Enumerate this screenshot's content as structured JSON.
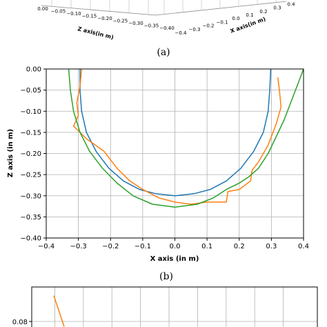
{
  "top_panel": {
    "caption": "(a)",
    "z_axis_label": "Z axis(in m)",
    "x_axis_label": "X axis(in m)",
    "z_ticks": [
      "0.00",
      "−0.05",
      "−0.10",
      "−0.15",
      "−0.20",
      "−0.25",
      "−0.30",
      "−0.35",
      "−0.40"
    ],
    "x_ticks": [
      "−0.4",
      "−0.3",
      "−0.2",
      "−0.1",
      "0.0",
      "0.1",
      "0.2",
      "0.3",
      "0.4"
    ]
  },
  "middle_panel": {
    "caption": "(b)"
  },
  "bottom_panel": {
    "y_tick": "0.08"
  },
  "chart_data": [
    {
      "type": "line",
      "xlabel": "X axis (in m)",
      "ylabel": "Z axis (in m)",
      "xlim": [
        -0.4,
        0.4
      ],
      "ylim": [
        -0.4,
        0.0
      ],
      "x_ticks": [
        "−0.4",
        "−0.3",
        "−0.2",
        "−0.1",
        "0.0",
        "0.1",
        "0.2",
        "0.3",
        "0.4"
      ],
      "y_ticks": [
        "0.00",
        "−0.05",
        "−0.10",
        "−0.15",
        "−0.20",
        "−0.25",
        "−0.30",
        "−0.35",
        "−0.40"
      ],
      "grid": true,
      "colors": [
        "#1f77b4",
        "#ff7f0e",
        "#2ca02c"
      ],
      "series": [
        {
          "points": [
            [
              -0.295,
              0.0
            ],
            [
              -0.295,
              -0.05
            ],
            [
              -0.29,
              -0.1
            ],
            [
              -0.275,
              -0.15
            ],
            [
              -0.245,
              -0.195
            ],
            [
              -0.205,
              -0.235
            ],
            [
              -0.16,
              -0.265
            ],
            [
              -0.11,
              -0.285
            ],
            [
              -0.06,
              -0.295
            ],
            [
              0.0,
              -0.3
            ],
            [
              0.06,
              -0.295
            ],
            [
              0.11,
              -0.285
            ],
            [
              0.16,
              -0.265
            ],
            [
              0.205,
              -0.235
            ],
            [
              0.245,
              -0.195
            ],
            [
              0.275,
              -0.15
            ],
            [
              0.29,
              -0.1
            ],
            [
              0.295,
              -0.05
            ],
            [
              0.298,
              0.0
            ]
          ]
        },
        {
          "points": [
            [
              -0.29,
              0.0
            ],
            [
              -0.295,
              -0.04
            ],
            [
              -0.305,
              -0.08
            ],
            [
              -0.3,
              -0.11
            ],
            [
              -0.315,
              -0.135
            ],
            [
              -0.275,
              -0.165
            ],
            [
              -0.22,
              -0.195
            ],
            [
              -0.18,
              -0.235
            ],
            [
              -0.14,
              -0.265
            ],
            [
              -0.1,
              -0.285
            ],
            [
              -0.05,
              -0.305
            ],
            [
              0.0,
              -0.315
            ],
            [
              0.05,
              -0.32
            ],
            [
              0.1,
              -0.315
            ],
            [
              0.16,
              -0.315
            ],
            [
              0.165,
              -0.29
            ],
            [
              0.2,
              -0.285
            ],
            [
              0.235,
              -0.265
            ],
            [
              0.24,
              -0.24
            ],
            [
              0.26,
              -0.22
            ],
            [
              0.29,
              -0.18
            ],
            [
              0.315,
              -0.13
            ],
            [
              0.33,
              -0.09
            ],
            [
              0.325,
              -0.05
            ],
            [
              0.32,
              -0.02
            ]
          ]
        },
        {
          "points": [
            [
              -0.33,
              0.0
            ],
            [
              -0.325,
              -0.05
            ],
            [
              -0.315,
              -0.1
            ],
            [
              -0.295,
              -0.15
            ],
            [
              -0.265,
              -0.195
            ],
            [
              -0.225,
              -0.235
            ],
            [
              -0.18,
              -0.27
            ],
            [
              -0.13,
              -0.3
            ],
            [
              -0.07,
              -0.32
            ],
            [
              0.0,
              -0.327
            ],
            [
              0.07,
              -0.32
            ],
            [
              0.12,
              -0.305
            ],
            [
              0.16,
              -0.285
            ],
            [
              0.2,
              -0.27
            ],
            [
              0.23,
              -0.255
            ],
            [
              0.26,
              -0.235
            ],
            [
              0.29,
              -0.2
            ],
            [
              0.315,
              -0.16
            ],
            [
              0.34,
              -0.12
            ],
            [
              0.36,
              -0.08
            ],
            [
              0.38,
              -0.04
            ],
            [
              0.4,
              0.0
            ]
          ]
        }
      ]
    },
    {
      "type": "line",
      "y_ticks": [
        "0.08"
      ],
      "colors": [
        "#ff7f0e"
      ],
      "series": [
        {
          "points": [
            [
              0.0,
              0.105
            ],
            [
              0.02,
              0.075
            ]
          ]
        }
      ]
    }
  ]
}
